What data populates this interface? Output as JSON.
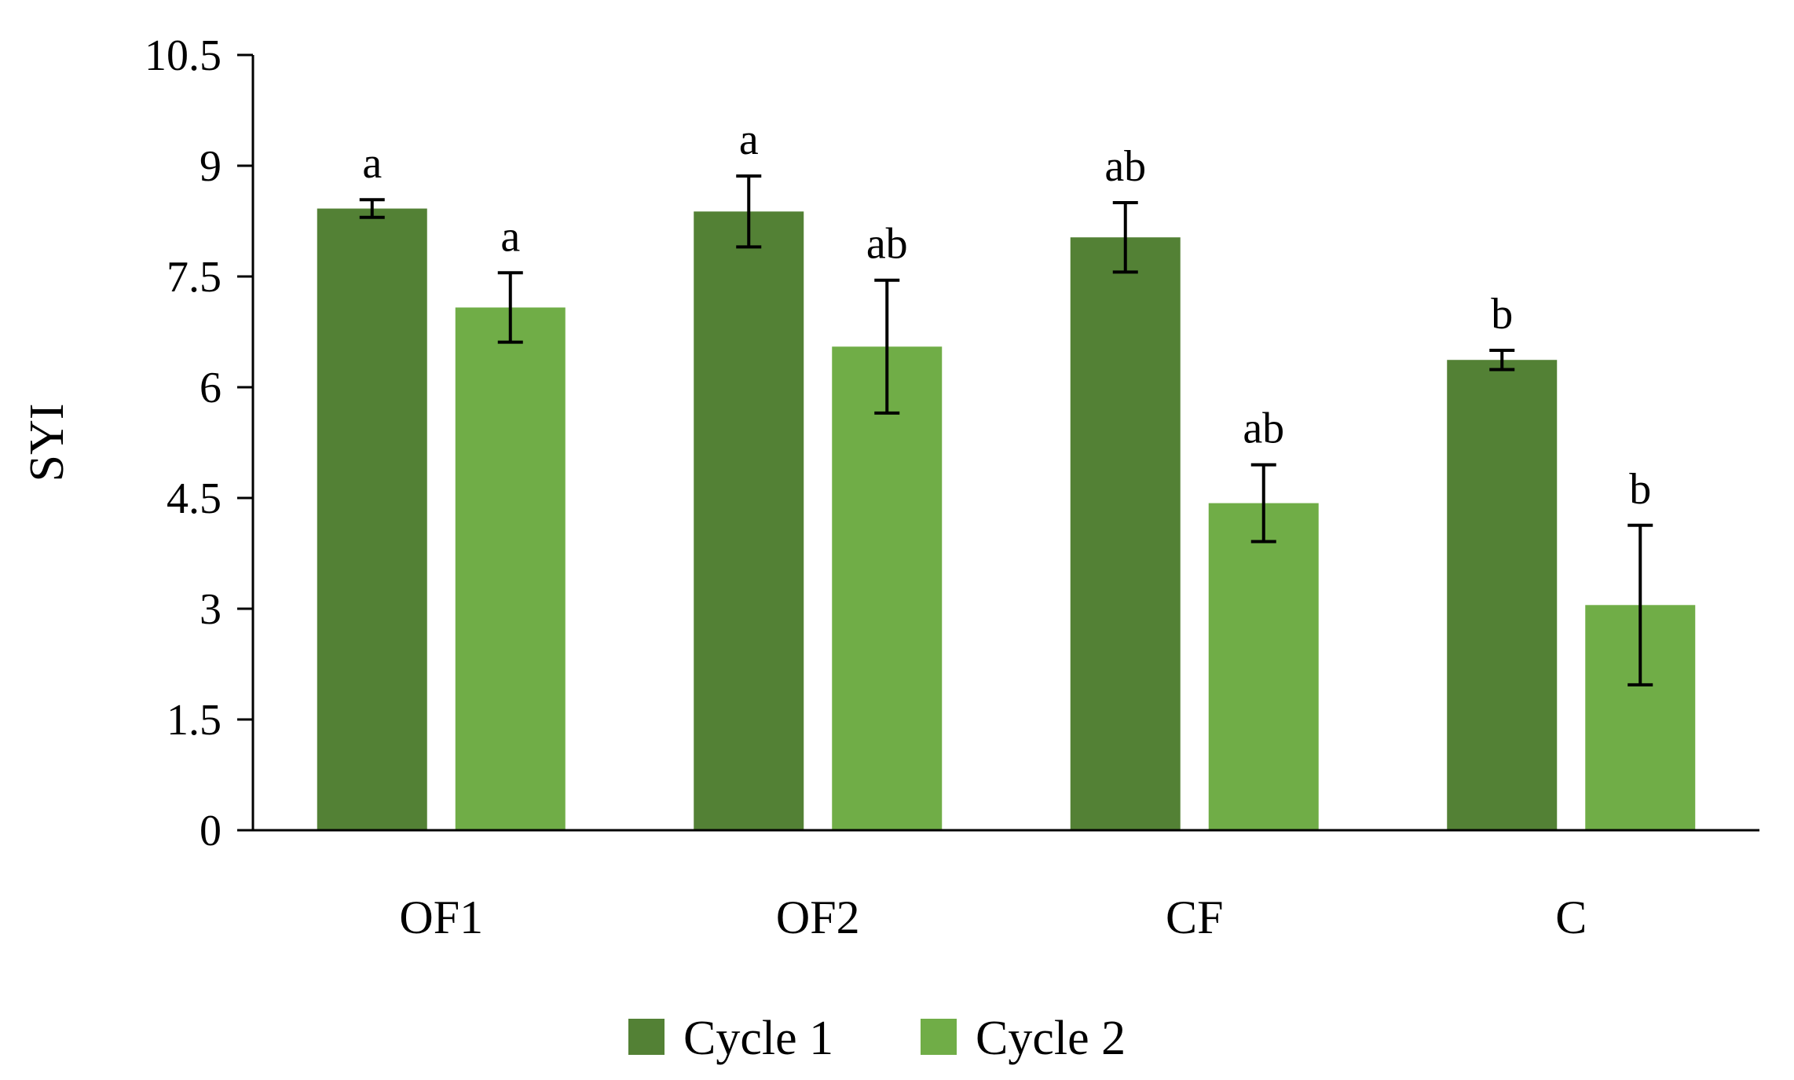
{
  "chart_data": {
    "type": "bar",
    "title": "",
    "xlabel": "",
    "ylabel": "SYI",
    "ylim": [
      0,
      10.5
    ],
    "yticks": [
      "0",
      "1.5",
      "3",
      "4.5",
      "6",
      "7.5",
      "9",
      "10.5"
    ],
    "categories": [
      "OF1",
      "OF2",
      "CF",
      "C"
    ],
    "series": [
      {
        "name": "Cycle 1",
        "color": "#538135",
        "values": [
          8.42,
          8.38,
          8.03,
          6.37
        ],
        "errors": [
          0.12,
          0.48,
          0.47,
          0.13
        ],
        "labels": [
          "a",
          "a",
          "ab",
          "b"
        ]
      },
      {
        "name": "Cycle 2",
        "color": "#70AD47",
        "values": [
          7.08,
          6.55,
          4.43,
          3.05
        ],
        "errors": [
          0.47,
          0.9,
          0.52,
          1.08
        ],
        "labels": [
          "a",
          "ab",
          "ab",
          "b"
        ]
      }
    ],
    "legend": "bottom",
    "grid": false
  }
}
